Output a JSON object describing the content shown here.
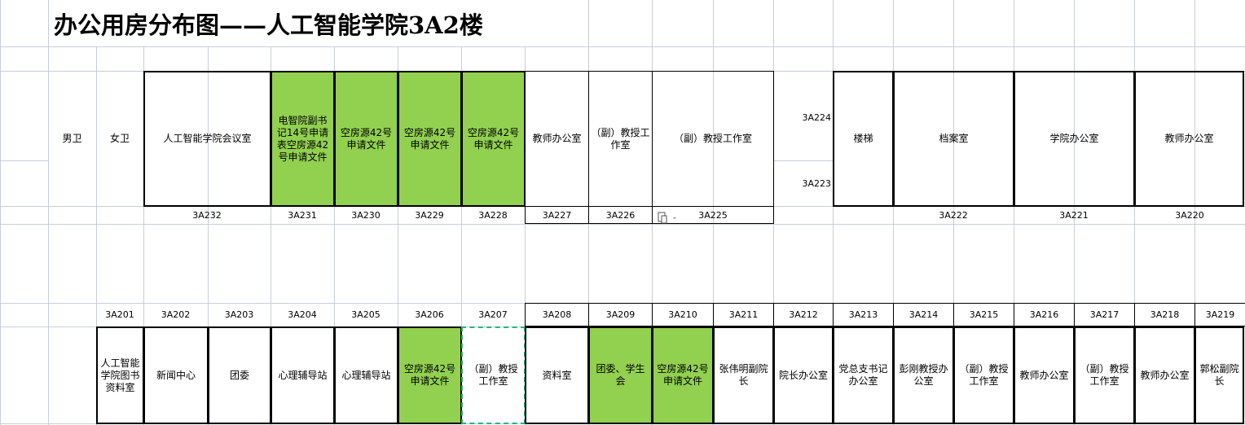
{
  "title": "办公用房分布图——人工智能学院3A2楼",
  "colors": {
    "empty_room_green": "#92d050",
    "selection_dashed": "#27b47e",
    "gridline": "#c8cdd9"
  },
  "upper": {
    "rooms": [
      "男卫",
      "女卫",
      "人工智能学院会议室",
      "电智院副书记14号申请表空房源42号申请文件",
      "空房源42号申请文件",
      "空房源42号申请文件",
      "空房源42号申请文件",
      "教师办公室",
      "（副）教授工作室",
      "（副）教授工作室",
      "楼梯",
      "档案室",
      "学院办公室",
      "教师办公室"
    ],
    "side_numbers": [
      "3A224",
      "3A223"
    ],
    "numbers": [
      "3A232",
      "3A231",
      "3A230",
      "3A229",
      "3A228",
      "3A227",
      "3A226",
      "3A225",
      "3A222",
      "3A221",
      "3A220"
    ]
  },
  "lower": {
    "numbers": [
      "3A201",
      "3A202",
      "3A203",
      "3A204",
      "3A205",
      "3A206",
      "3A207",
      "3A208",
      "3A209",
      "3A210",
      "3A211",
      "3A212",
      "3A213",
      "3A214",
      "3A215",
      "3A216",
      "3A217",
      "3A218",
      "3A219"
    ],
    "rooms": [
      "人工智能学院图书资料室",
      "新闻中心",
      "团委",
      "心理辅导站",
      "心理辅导站",
      "空房源42号申请文件",
      "（副）教授工作室",
      "资料室",
      "团委、学生会",
      "空房源42号申请文件",
      "张伟明副院长",
      "院长办公室",
      "党总支书记办公室",
      "彭刚教授办公室",
      "（副）教授工作室",
      "教师办公室",
      "（副）教授工作室",
      "教师办公室",
      "郭松副院长"
    ]
  },
  "icons": {
    "paste_options": "clipboard-icon"
  }
}
